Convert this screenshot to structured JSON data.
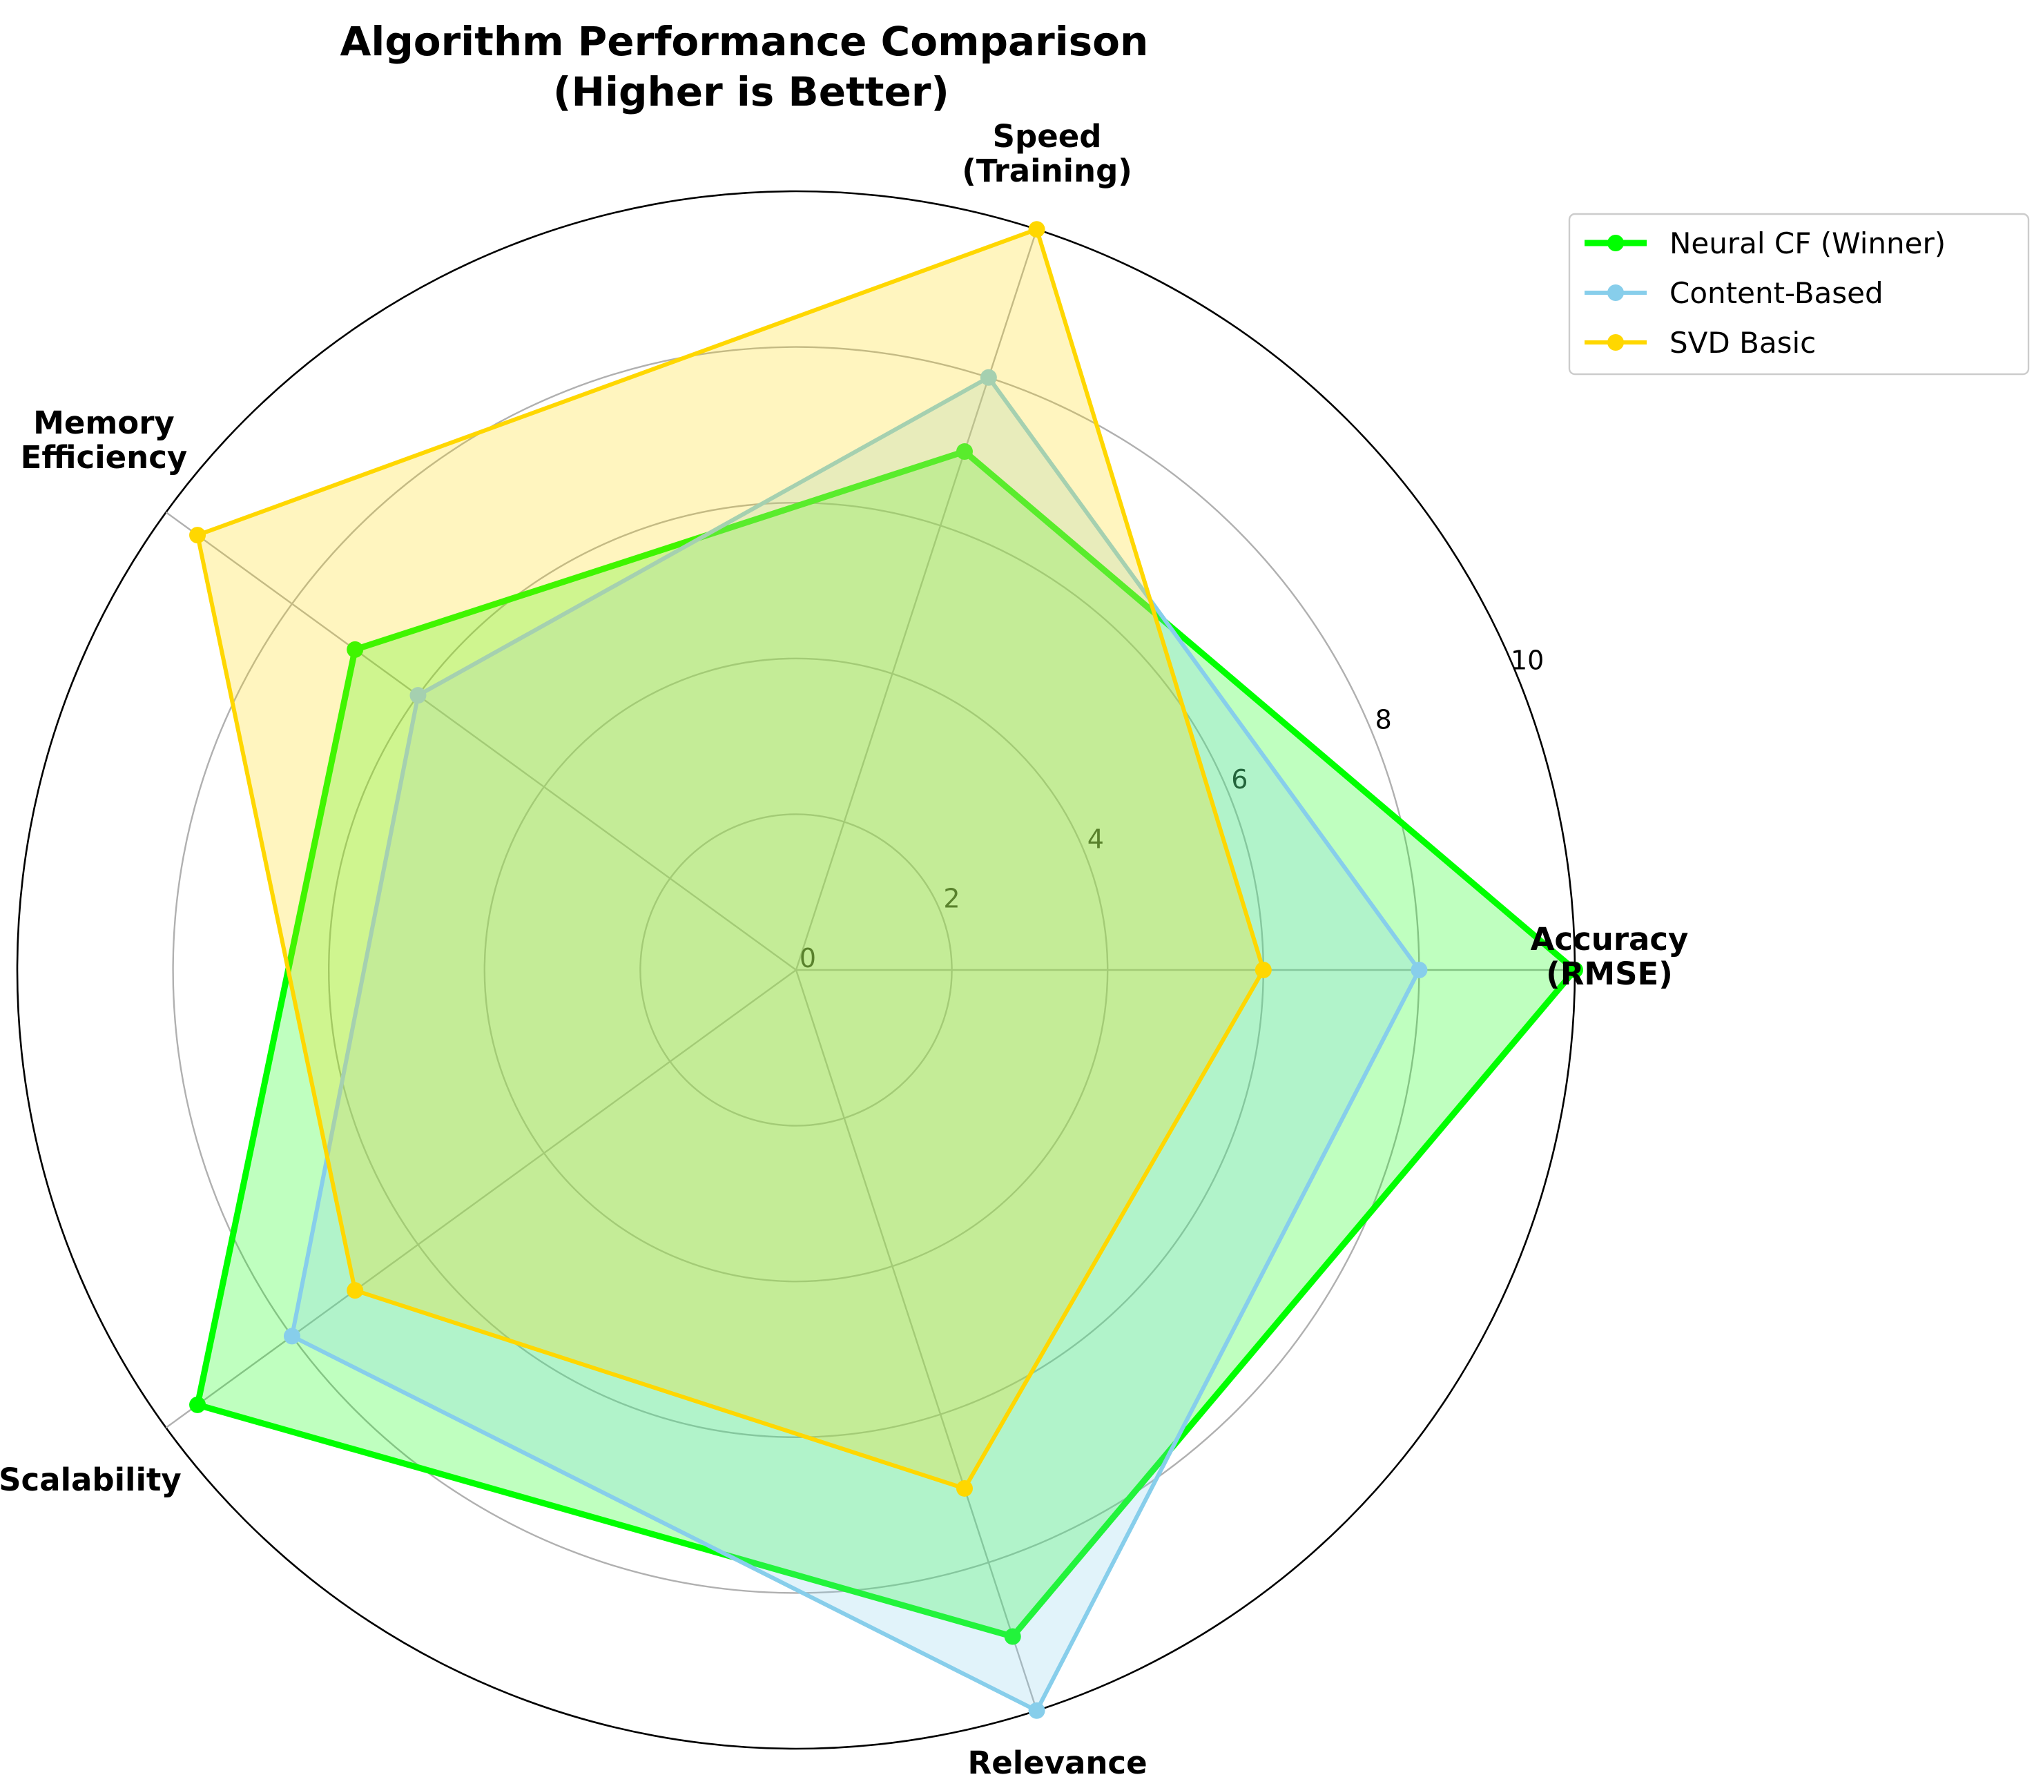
{
  "chart_data": {
    "type": "radar",
    "title": [
      "Algorithm Performance Comparison",
      "(Higher is Better)"
    ],
    "axes": [
      [
        "Accuracy",
        "(RMSE)"
      ],
      [
        "Speed",
        "(Training)"
      ],
      [
        "Memory",
        "Efficiency"
      ],
      [
        "Scalability"
      ],
      [
        "Relevance"
      ]
    ],
    "rlim": [
      0,
      10
    ],
    "rticks": [
      "0",
      "2",
      "4",
      "6",
      "8",
      "10"
    ],
    "grid": true,
    "legend_position": "upper right, outside plot",
    "series": [
      {
        "name": "Neural CF (Winner)",
        "values": [
          10,
          7,
          7,
          9.5,
          9
        ],
        "color": "#00ff00",
        "fill": "#00ff00"
      },
      {
        "name": "Content-Based",
        "values": [
          8,
          8,
          6,
          8,
          10
        ],
        "color": "#87ceeb",
        "fill": "#87ceeb"
      },
      {
        "name": "SVD Basic",
        "values": [
          6,
          10,
          9.5,
          7,
          7
        ],
        "color": "#ffd700",
        "fill": "#ffd700"
      }
    ]
  }
}
